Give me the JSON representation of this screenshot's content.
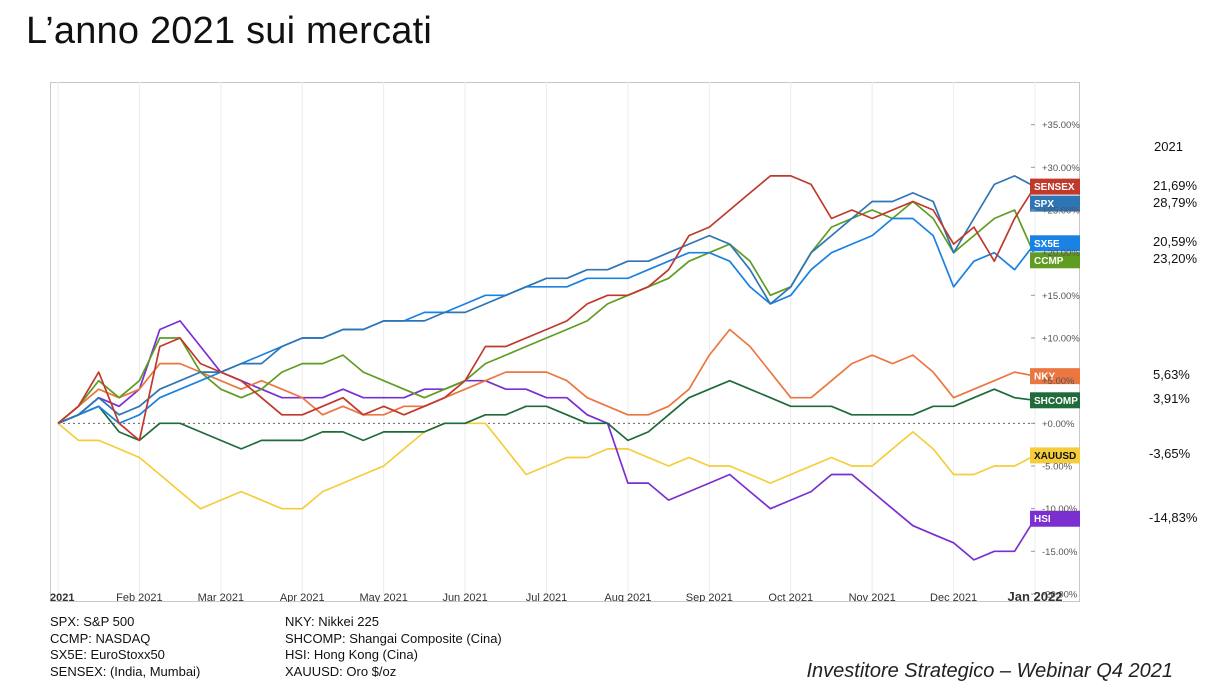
{
  "slide": {
    "title": "L’anno 2021 sui mercati",
    "footer": "Investitore Strategico – Webinar Q4 2021",
    "year_header": "2021"
  },
  "legend": [
    "SPX: S&P 500",
    "CCMP: NASDAQ",
    "SX5E: EuroStoxx50",
    "SENSEX: (India, Mumbai)",
    "NKY: Nikkei 225",
    "SHCOMP: Shangai Composite (Cina)",
    "HSI: Hong Kong (Cina)",
    "XAUUSD: Oro $/oz"
  ],
  "chart_data": {
    "type": "line",
    "y_unit": "%",
    "ylim": [
      -20,
      40
    ],
    "y_ticks": [
      "+35.00%",
      "+30.00%",
      "+25.00%",
      "+20.00%",
      "+15.00%",
      "+10.00%",
      "+5.00%",
      "+0.00%",
      "-5.00%",
      "-10.00%",
      "-15.00%",
      "-20.00%"
    ],
    "y_tick_values": [
      35,
      30,
      25,
      20,
      15,
      10,
      5,
      0,
      -5,
      -10,
      -15,
      -20
    ],
    "x_ticks": [
      "2021",
      "Feb 2021",
      "Mar 2021",
      "Apr 2021",
      "May 2021",
      "Jun 2021",
      "Jul 2021",
      "Aug 2021",
      "Sep 2021",
      "Oct 2021",
      "Nov 2021",
      "Dec 2021",
      "Jan 2022"
    ],
    "x_tick_months": [
      0,
      1,
      2,
      3,
      4,
      5,
      6,
      7,
      8,
      9,
      10,
      11,
      12
    ],
    "x_months": [
      0,
      0.25,
      0.5,
      0.75,
      1,
      1.25,
      1.5,
      1.75,
      2,
      2.25,
      2.5,
      2.75,
      3,
      3.25,
      3.5,
      3.75,
      4,
      4.25,
      4.5,
      4.75,
      5,
      5.25,
      5.5,
      5.75,
      6,
      6.25,
      6.5,
      6.75,
      7,
      7.25,
      7.5,
      7.75,
      8,
      8.25,
      8.5,
      8.75,
      9,
      9.25,
      9.5,
      9.75,
      10,
      10.25,
      10.5,
      10.75,
      11,
      11.25,
      11.5,
      11.75,
      12
    ],
    "zero_line": true,
    "series": [
      {
        "name": "SENSEX",
        "label": "SENSEX",
        "badge": "+27.74%",
        "ytd": "21,69%",
        "color": "#c0392b",
        "end": 27.74,
        "values": [
          0,
          2,
          6,
          0,
          -2,
          9,
          10,
          7,
          6,
          5,
          3,
          1,
          1,
          2,
          3,
          1,
          2,
          1,
          2,
          3,
          5,
          9,
          9,
          10,
          11,
          12,
          14,
          15,
          15,
          16,
          18,
          22,
          23,
          25,
          27,
          29,
          29,
          28,
          24,
          25,
          24,
          25,
          26,
          25,
          21,
          23,
          19,
          24,
          27.74
        ]
      },
      {
        "name": "SPX",
        "label": "SPX",
        "badge": "+27.72%",
        "ytd": "28,79%",
        "color": "#2e75b6",
        "end": 27.72,
        "values": [
          0,
          1,
          3,
          1,
          2,
          4,
          5,
          6,
          6,
          7,
          7,
          9,
          10,
          10,
          11,
          11,
          12,
          12,
          12,
          13,
          13,
          14,
          15,
          16,
          17,
          17,
          18,
          18,
          19,
          19,
          20,
          21,
          22,
          21,
          18,
          14,
          16,
          20,
          22,
          24,
          26,
          26,
          27,
          26,
          20,
          24,
          28,
          29,
          27.72
        ]
      },
      {
        "name": "SX5E",
        "label": "SX5E",
        "badge": "+21.10%",
        "ytd": "20,59%",
        "color": "#1a82e2",
        "end": 21.1,
        "values": [
          0,
          1,
          2,
          0,
          1,
          3,
          4,
          5,
          6,
          7,
          8,
          9,
          10,
          10,
          11,
          11,
          12,
          12,
          13,
          13,
          14,
          15,
          15,
          16,
          16,
          16,
          17,
          17,
          17,
          18,
          19,
          20,
          20,
          19,
          16,
          14,
          15,
          18,
          20,
          21,
          22,
          24,
          24,
          22,
          16,
          19,
          20,
          18,
          21.1
        ]
      },
      {
        "name": "CCMP",
        "label": "CCMP",
        "badge": "+19.61%",
        "ytd": "23,20%",
        "color": "#5e9c22",
        "end": 19.61,
        "values": [
          0,
          2,
          5,
          3,
          5,
          10,
          10,
          6,
          4,
          3,
          4,
          6,
          7,
          7,
          8,
          6,
          5,
          4,
          3,
          4,
          5,
          7,
          8,
          9,
          10,
          11,
          12,
          14,
          15,
          16,
          17,
          19,
          20,
          21,
          19,
          15,
          16,
          20,
          23,
          24,
          25,
          24,
          26,
          24,
          20,
          22,
          24,
          25,
          19.61
        ]
      },
      {
        "name": "NKY",
        "label": "NKY",
        "badge": "+5.53%",
        "ytd": "5,63%",
        "color": "#ec7640",
        "end": 5.53,
        "values": [
          0,
          2,
          4,
          3,
          4,
          7,
          7,
          6,
          5,
          4,
          5,
          4,
          3,
          1,
          2,
          1,
          1,
          2,
          2,
          3,
          4,
          5,
          6,
          6,
          6,
          5,
          3,
          2,
          1,
          1,
          2,
          4,
          8,
          11,
          9,
          6,
          3,
          3,
          5,
          7,
          8,
          7,
          8,
          6,
          3,
          4,
          5,
          6,
          5.53
        ]
      },
      {
        "name": "SHCOMP",
        "label": "SHCOMP",
        "badge": "+2.70%",
        "ytd": "3,91%",
        "color": "#1f6b3a",
        "end": 2.7,
        "values": [
          0,
          1,
          2,
          -1,
          -2,
          0,
          0,
          -1,
          -2,
          -3,
          -2,
          -2,
          -2,
          -1,
          -1,
          -2,
          -1,
          -1,
          -1,
          0,
          0,
          1,
          1,
          2,
          2,
          1,
          0,
          0,
          -2,
          -1,
          1,
          3,
          4,
          5,
          4,
          3,
          2,
          2,
          2,
          1,
          1,
          1,
          1,
          2,
          2,
          3,
          4,
          3,
          2.7
        ]
      },
      {
        "name": "HSI",
        "label": "HSI",
        "badge": "-11.18%",
        "ytd": "-14,83%",
        "color": "#7b2fd0",
        "end": -11.18,
        "values": [
          0,
          1,
          3,
          2,
          4,
          11,
          12,
          9,
          6,
          5,
          4,
          3,
          3,
          3,
          4,
          3,
          3,
          3,
          4,
          4,
          5,
          5,
          4,
          4,
          3,
          3,
          1,
          0,
          -7,
          -7,
          -9,
          -8,
          -7,
          -6,
          -8,
          -10,
          -9,
          -8,
          -6,
          -6,
          -8,
          -10,
          -12,
          -13,
          -14,
          -16,
          -15,
          -15,
          -11.18
        ]
      },
      {
        "name": "XAUUSD",
        "label": "XAUUSD",
        "badge": "-3.76%",
        "ytd": "-3,65%",
        "color": "#f5cd3a",
        "end": -3.76,
        "values": [
          0,
          -2,
          -2,
          -3,
          -4,
          -6,
          -8,
          -10,
          -9,
          -8,
          -9,
          -10,
          -10,
          -8,
          -7,
          -6,
          -5,
          -3,
          -1,
          0,
          0,
          0,
          -3,
          -6,
          -5,
          -4,
          -4,
          -3,
          -3,
          -4,
          -5,
          -4,
          -5,
          -5,
          -6,
          -7,
          -6,
          -5,
          -4,
          -5,
          -5,
          -3,
          -1,
          -3,
          -6,
          -6,
          -5,
          -5,
          -3.76
        ]
      }
    ]
  }
}
